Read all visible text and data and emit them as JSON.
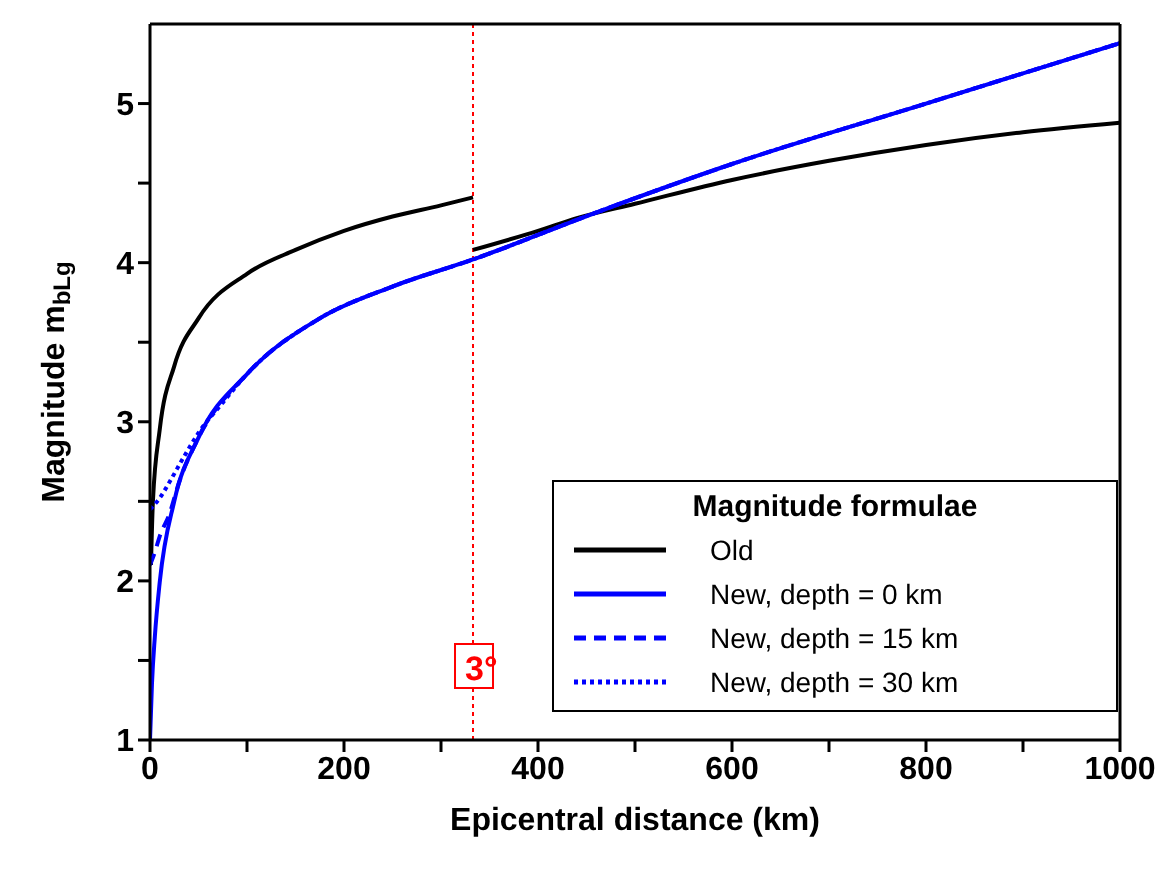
{
  "chart_data": {
    "type": "line",
    "xlabel": "Epicentral distance (km)",
    "ylabel": "Magnitude m$_{bLg}$",
    "legend_title": "Magnitude formulae",
    "legend": "bottom right",
    "marker": "none",
    "xlim": [
      0,
      1000
    ],
    "ylim": [
      1,
      5.5
    ],
    "xticks": [
      0,
      {
        "value": 100,
        "label": null
      },
      200,
      {
        "value": 300,
        "label": null
      },
      400,
      {
        "value": 500,
        "label": null
      },
      600,
      {
        "value": 700,
        "label": null
      },
      800,
      {
        "value": 900,
        "label": null
      },
      1000
    ],
    "yticks": [
      1,
      {
        "value": 1.5,
        "label": null
      },
      2,
      {
        "value": 2.5,
        "label": null
      },
      3,
      {
        "value": 3.5,
        "label": null
      },
      4,
      {
        "value": 4.5,
        "label": null
      },
      5
    ],
    "ref_lines": [
      {
        "axis": "x",
        "value": 333,
        "color": "#ff0000",
        "line_style": "dotted"
      }
    ],
    "annotations": [
      {
        "text": "3°",
        "x": 333
      }
    ],
    "series": [
      {
        "name": "Old",
        "color": "#000000",
        "line_style": "solid",
        "x": [
          1,
          3,
          10,
          25,
          50,
          100,
          150,
          200,
          250,
          300,
          333
        ],
        "values": [
          2.1,
          2.5,
          2.95,
          3.35,
          3.65,
          3.93,
          4.08,
          4.2,
          4.29,
          4.36,
          4.41
        ]
      },
      {
        "color": "#000000",
        "line_style": "solid",
        "x": [
          333,
          400,
          440,
          500,
          600,
          700,
          800,
          900,
          1000
        ],
        "values": [
          4.08,
          4.2,
          4.28,
          4.37,
          4.52,
          4.64,
          4.74,
          4.82,
          4.88
        ]
      },
      {
        "name": "New, depth = 0 km",
        "color": "#0000ff",
        "line_style": "solid",
        "x": [
          0,
          2,
          5,
          10,
          25,
          50,
          100,
          175,
          250,
          333,
          462,
          600,
          800,
          1000
        ],
        "values": [
          1,
          1.35,
          1.65,
          1.99,
          2.5,
          2.9,
          3.3,
          3.65,
          3.85,
          4.02,
          4.32,
          4.62,
          5.0,
          5.38
        ]
      },
      {
        "name": "New, depth = 15 km",
        "color": "#0000ff",
        "line_style": "dashed",
        "x": [
          0,
          5,
          10,
          20,
          30,
          50,
          100,
          175,
          250,
          333,
          462,
          600,
          800,
          1000
        ],
        "values": [
          2.1,
          2.18,
          2.28,
          2.42,
          2.62,
          2.9,
          3.3,
          3.65,
          3.85,
          4.02,
          4.32,
          4.62,
          5.0,
          5.38
        ]
      },
      {
        "name": "New, depth = 30 km",
        "color": "#0000ff",
        "line_style": "dotted",
        "x": [
          0,
          10,
          20,
          35,
          50,
          75,
          100,
          175,
          250,
          333,
          462,
          600,
          800,
          1000
        ],
        "values": [
          2.45,
          2.52,
          2.62,
          2.78,
          2.93,
          3.12,
          3.3,
          3.65,
          3.85,
          4.02,
          4.32,
          4.62,
          5.0,
          5.38
        ]
      }
    ]
  }
}
